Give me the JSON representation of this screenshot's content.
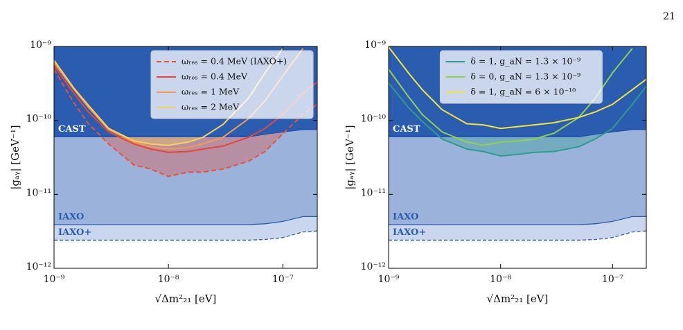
{
  "page_number": "21",
  "chart_data": [
    {
      "type": "line",
      "xscale": "log",
      "yscale": "log",
      "legend": "upper right",
      "xlabel": "√Δm²₂₁ [eV]",
      "ylabel": "|gₐᵧ| [GeV⁻¹]",
      "xlim": [
        1e-09,
        2e-07
      ],
      "ylim": [
        1e-12,
        1e-09
      ],
      "xticks": [
        {
          "value": 1e-09,
          "label": "10⁻⁹"
        },
        {
          "value": 1e-08,
          "label": "10⁻⁸"
        },
        {
          "value": 1e-07,
          "label": "10⁻⁷"
        }
      ],
      "yticks": [
        {
          "value": 1e-12,
          "label": "10⁻¹²"
        },
        {
          "value": 1e-11,
          "label": "10⁻¹¹"
        },
        {
          "value": 1e-10,
          "label": "10⁻¹⁰"
        },
        {
          "value": 1e-09,
          "label": "10⁻⁹"
        }
      ],
      "x": [
        1e-09,
        1.5e-09,
        2e-09,
        3e-09,
        5e-09,
        7e-09,
        1e-08,
        1.5e-08,
        2e-08,
        3e-08,
        5e-08,
        7e-08,
        1e-07,
        1.5e-07,
        2e-07
      ],
      "regions": [
        {
          "name": "CAST",
          "fill": "#2a5db0",
          "line": "#1f4fa8",
          "dash": false,
          "text_color": "#ffffff",
          "values": [
            6e-11,
            6e-11,
            6e-11,
            6e-11,
            6e-11,
            6e-11,
            6e-11,
            6e-11,
            6e-11,
            6e-11,
            6e-11,
            6.5e-11,
            7e-11,
            7.5e-11,
            7.5e-11
          ]
        },
        {
          "name": "IAXO",
          "fill": "#9bb3db",
          "line": "#2a5db0",
          "dash": false,
          "text_color": "#2a5db0",
          "values": [
            3.9e-12,
            3.9e-12,
            3.9e-12,
            3.9e-12,
            3.9e-12,
            3.9e-12,
            3.9e-12,
            3.9e-12,
            3.9e-12,
            3.9e-12,
            3.9e-12,
            4e-12,
            4.3e-12,
            5e-12,
            5e-12
          ]
        },
        {
          "name": "IAXO+",
          "fill": "#c9d6ee",
          "line": "#2a5db0",
          "dash": true,
          "text_color": "#2a5db0",
          "values": [
            2.4e-12,
            2.4e-12,
            2.4e-12,
            2.4e-12,
            2.4e-12,
            2.4e-12,
            2.4e-12,
            2.4e-12,
            2.4e-12,
            2.4e-12,
            2.4e-12,
            2.45e-12,
            2.6e-12,
            3.1e-12,
            3.2e-12
          ]
        }
      ],
      "series": [
        {
          "name": "ωᵣₑₛ = 0.4 MeV (IAXO+)",
          "color": "#e8513a",
          "dash": true,
          "fill": true,
          "values": [
            4.9e-10,
            1.7e-10,
            9e-11,
            4.8e-11,
            2.5e-11,
            2.2e-11,
            1.75e-11,
            2e-11,
            2e-11,
            2.2e-11,
            2.8e-11,
            3.8e-11,
            6.6e-11,
            1.2e-10,
            1.65e-10
          ]
        },
        {
          "name": "ωᵣₑₛ = 0.4 MeV",
          "color": "#e8453a",
          "dash": false,
          "fill": false,
          "values": [
            5.5e-10,
            2.3e-10,
            1.3e-10,
            7e-11,
            4.8e-11,
            4.1e-11,
            3.7e-11,
            3.8e-11,
            4.1e-11,
            4.5e-11,
            5.9e-11,
            7.8e-11,
            1.2e-10,
            2.3e-10,
            3.3e-10
          ]
        },
        {
          "name": "ωᵣₑₛ = 1 MeV",
          "color": "#f59a50",
          "dash": false,
          "fill": false,
          "values": [
            6e-10,
            2.6e-10,
            1.5e-10,
            7.5e-11,
            5.1e-11,
            4.4e-11,
            4.1e-11,
            4.3e-11,
            4.8e-11,
            5.9e-11,
            1.05e-10,
            1.85e-10,
            4e-10,
            9.4e-10,
            null
          ]
        },
        {
          "name": "ωᵣₑₛ = 2 MeV",
          "color": "#f7d25a",
          "dash": false,
          "fill": true,
          "values": [
            6.5e-10,
            2.7e-10,
            1.6e-10,
            7.8e-11,
            5.3e-11,
            4.8e-11,
            4.6e-11,
            5.1e-11,
            5.9e-11,
            8.8e-11,
            2e-10,
            4.4e-10,
            9.4e-10,
            null,
            null
          ]
        }
      ]
    },
    {
      "type": "line",
      "xscale": "log",
      "yscale": "log",
      "legend": "upper center",
      "xlabel": "√Δm²₂₁ [eV]",
      "ylabel": "|gₐᵧ| [GeV⁻¹]",
      "xlim": [
        1e-09,
        2e-07
      ],
      "ylim": [
        1e-12,
        1e-09
      ],
      "xticks": [
        {
          "value": 1e-09,
          "label": "10⁻⁹"
        },
        {
          "value": 1e-08,
          "label": "10⁻⁸"
        },
        {
          "value": 1e-07,
          "label": "10⁻⁷"
        }
      ],
      "yticks": [
        {
          "value": 1e-12,
          "label": "10⁻¹²"
        },
        {
          "value": 1e-11,
          "label": "10⁻¹¹"
        },
        {
          "value": 1e-10,
          "label": "10⁻¹⁰"
        },
        {
          "value": 1e-09,
          "label": "10⁻⁹"
        }
      ],
      "x": [
        1e-09,
        1.5e-09,
        2e-09,
        3e-09,
        5e-09,
        7e-09,
        1e-08,
        1.5e-08,
        2e-08,
        3e-08,
        5e-08,
        7e-08,
        1e-07,
        1.5e-07,
        2e-07
      ],
      "regions": [
        {
          "name": "CAST",
          "fill": "#2a5db0",
          "line": "#1f4fa8",
          "dash": false,
          "text_color": "#ffffff",
          "values": [
            6e-11,
            6e-11,
            6e-11,
            6e-11,
            6e-11,
            6e-11,
            6e-11,
            6e-11,
            6e-11,
            6e-11,
            6e-11,
            6.5e-11,
            7e-11,
            7.5e-11,
            7.5e-11
          ]
        },
        {
          "name": "IAXO",
          "fill": "#9bb3db",
          "line": "#2a5db0",
          "dash": false,
          "text_color": "#2a5db0",
          "values": [
            3.9e-12,
            3.9e-12,
            3.9e-12,
            3.9e-12,
            3.9e-12,
            3.9e-12,
            3.9e-12,
            3.9e-12,
            3.9e-12,
            3.9e-12,
            3.9e-12,
            4e-12,
            4.3e-12,
            5e-12,
            5e-12
          ]
        },
        {
          "name": "IAXO+",
          "fill": "#c9d6ee",
          "line": "#2a5db0",
          "dash": true,
          "text_color": "#2a5db0",
          "values": [
            2.4e-12,
            2.4e-12,
            2.4e-12,
            2.4e-12,
            2.4e-12,
            2.4e-12,
            2.4e-12,
            2.4e-12,
            2.4e-12,
            2.4e-12,
            2.4e-12,
            2.45e-12,
            2.6e-12,
            3.1e-12,
            3.2e-12
          ]
        }
      ],
      "series": [
        {
          "name": "δ = 1, g_aN = 1.3 × 10⁻⁹",
          "color": "#2a9d8f",
          "dash": false,
          "fill": true,
          "values": [
            3.2e-10,
            1.5e-10,
            9.7e-11,
            5.6e-11,
            4.1e-11,
            3.8e-11,
            3.3e-11,
            3.5e-11,
            3.7e-11,
            3.8e-11,
            4.4e-11,
            5.6e-11,
            7.8e-11,
            1.65e-10,
            2.9e-10
          ]
        },
        {
          "name": "δ = 0, g_aN = 1.3 × 10⁻⁹",
          "color": "#8fd14f",
          "dash": false,
          "fill": false,
          "values": [
            4.9e-10,
            2.1e-10,
            1.2e-10,
            7e-11,
            5.1e-11,
            4.6e-11,
            5.1e-11,
            5.3e-11,
            5.6e-11,
            6.7e-11,
            1.1e-10,
            2e-10,
            4.4e-10,
            9.4e-10,
            null
          ]
        },
        {
          "name": "δ = 1, g_aN = 6 × 10⁻¹⁰",
          "color": "#f2e33c",
          "dash": false,
          "fill": false,
          "values": [
            9.8e-10,
            4.4e-10,
            2.6e-10,
            1.4e-10,
            9e-11,
            8.7e-11,
            7.8e-11,
            8.3e-11,
            8.7e-11,
            9.3e-11,
            1.1e-10,
            1.3e-10,
            1.65e-10,
            2.6e-10,
            3.6e-10
          ]
        }
      ]
    }
  ]
}
